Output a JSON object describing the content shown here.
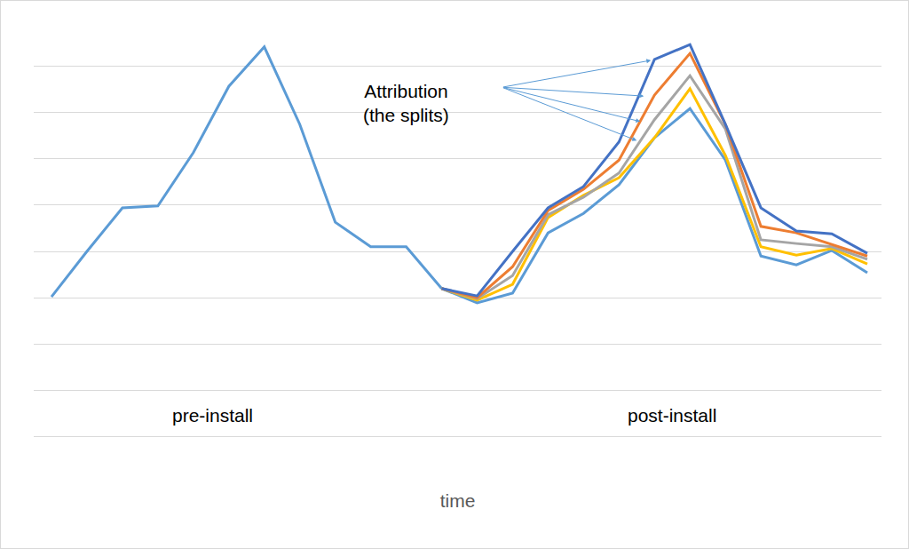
{
  "chart_data": {
    "type": "line",
    "x_label": "time",
    "annotations": [
      "Attribution\n(the splits)",
      "pre-install",
      "post-install"
    ],
    "categories": [
      null,
      null,
      null,
      null,
      null,
      null,
      null,
      null,
      null,
      null,
      null,
      null,
      null,
      null,
      null,
      null,
      null,
      null,
      null,
      null,
      null,
      null,
      null,
      null
    ],
    "series": [
      {
        "color": "#5b9bd5",
        "values": [
          4.02,
          5.0,
          5.94,
          5.98,
          7.13,
          8.56,
          9.41,
          7.74,
          5.63,
          5.1,
          5.1,
          4.2,
          null,
          null,
          null,
          null,
          null,
          null,
          null,
          null,
          null,
          null,
          null,
          null
        ]
      },
      {
        "color": "#5b9bd5",
        "values": [
          null,
          null,
          null,
          null,
          null,
          null,
          null,
          null,
          null,
          null,
          null,
          4.2,
          3.89,
          4.1,
          5.4,
          5.82,
          6.44,
          7.45,
          8.08,
          6.97,
          4.9,
          4.71,
          5.02,
          4.54
        ]
      },
      {
        "color": "#ffc000",
        "values": [
          null,
          null,
          null,
          null,
          null,
          null,
          null,
          null,
          null,
          null,
          null,
          4.2,
          3.95,
          4.29,
          5.73,
          6.21,
          6.59,
          7.45,
          8.51,
          7.07,
          5.1,
          4.92,
          5.06,
          4.73
        ]
      },
      {
        "color": "#a5a5a5",
        "values": [
          null,
          null,
          null,
          null,
          null,
          null,
          null,
          null,
          null,
          null,
          null,
          4.2,
          3.98,
          4.48,
          5.79,
          6.17,
          6.69,
          7.84,
          8.79,
          7.64,
          5.25,
          5.17,
          5.1,
          4.83
        ]
      },
      {
        "color": "#ed7d31",
        "values": [
          null,
          null,
          null,
          null,
          null,
          null,
          null,
          null,
          null,
          null,
          null,
          4.2,
          4.0,
          4.67,
          5.88,
          6.34,
          6.97,
          8.37,
          9.27,
          7.74,
          5.54,
          5.4,
          5.15,
          4.9
        ]
      },
      {
        "color": "#4472c4",
        "values": [
          null,
          null,
          null,
          null,
          null,
          null,
          null,
          null,
          null,
          null,
          null,
          4.2,
          4.04,
          5.0,
          5.94,
          6.4,
          7.36,
          9.14,
          9.46,
          7.74,
          5.94,
          5.44,
          5.38,
          4.96
        ]
      }
    ],
    "ylim": [
      0,
      10
    ],
    "yticks": [
      0,
      1,
      2,
      3,
      4,
      5,
      6,
      7,
      8,
      9,
      10
    ],
    "grid": true,
    "tick_labels": false
  }
}
